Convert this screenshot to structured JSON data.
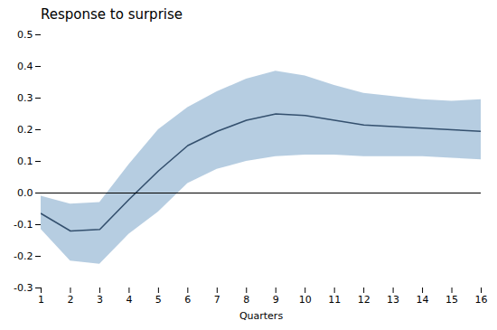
{
  "chart_data": {
    "type": "line",
    "title": "Response to surprise",
    "xlabel": "Quarters",
    "x": [
      1,
      2,
      3,
      4,
      5,
      6,
      7,
      8,
      9,
      10,
      11,
      12,
      13,
      14,
      15,
      16
    ],
    "values": [
      -0.065,
      -0.12,
      -0.115,
      -0.02,
      0.07,
      0.15,
      0.195,
      0.23,
      0.25,
      0.245,
      0.23,
      0.215,
      0.21,
      0.205,
      0.2,
      0.195
    ],
    "color": "#34506e",
    "band": {
      "upper": [
        -0.01,
        -0.035,
        -0.03,
        0.09,
        0.2,
        0.27,
        0.32,
        0.36,
        0.385,
        0.37,
        0.34,
        0.315,
        0.305,
        0.295,
        0.29,
        0.295
      ],
      "lower": [
        -0.115,
        -0.215,
        -0.225,
        -0.13,
        -0.06,
        0.03,
        0.075,
        0.1,
        0.115,
        0.12,
        0.12,
        0.115,
        0.115,
        0.115,
        0.11,
        0.105
      ],
      "color": "#7aa4c8"
    },
    "reference_lines": [
      {
        "y": 0,
        "color": "#000000"
      }
    ],
    "xlim": [
      1,
      16
    ],
    "xticks": [
      1,
      2,
      3,
      4,
      5,
      6,
      7,
      8,
      9,
      10,
      11,
      12,
      13,
      14,
      15,
      16
    ],
    "ylim": [
      -0.3,
      0.5
    ],
    "yticks": [
      -0.3,
      -0.2,
      -0.1,
      {
        "value": 0.0,
        "label": "0.0"
      },
      0.1,
      0.2,
      0.3,
      0.4,
      0.5
    ],
    "grid": false
  }
}
